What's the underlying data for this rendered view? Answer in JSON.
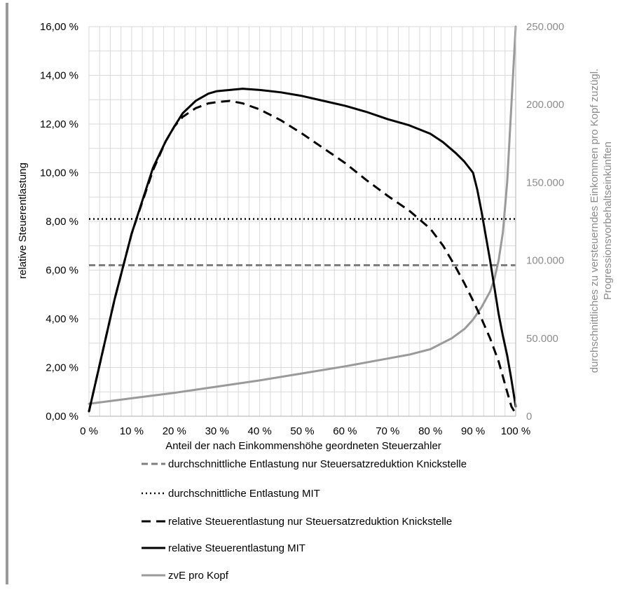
{
  "chart_data": {
    "type": "line",
    "xlabel": "Anteil der nach Einkommenshöhe geordneten Steuerzahler",
    "ylabel": "relative Steuerentlastung",
    "y2label_line1": "durchschnittliches zu versteuerndes Einkommen pro Kopf zuzügl.",
    "y2label_line2": "Progressionsvorbehaltseinkünften",
    "xlim": [
      0,
      100
    ],
    "ylim": [
      0,
      16
    ],
    "y2lim": [
      0,
      250000
    ],
    "x_ticks": [
      "0 %",
      "10 %",
      "20 %",
      "30 %",
      "40 %",
      "50 %",
      "60 %",
      "70 %",
      "80 %",
      "90 %",
      "100 %"
    ],
    "y_ticks": [
      "0,00 %",
      "2,00 %",
      "4,00 %",
      "6,00 %",
      "8,00 %",
      "10,00 %",
      "12,00 %",
      "14,00 %",
      "16,00 %"
    ],
    "y2_ticks": [
      "0",
      "50.000",
      "100.000",
      "150.000",
      "200.000",
      "250.000"
    ],
    "grid": true,
    "legend_position": "bottom",
    "series": [
      {
        "name": "durchschnittliche Entlastung nur Steuersatzreduktion Knickstelle",
        "axis": "left",
        "color": "#7f7f7f",
        "style": "dashed",
        "x": [
          0,
          100
        ],
        "y": [
          6.2,
          6.2
        ]
      },
      {
        "name": "durchschnittliche Entlastung MIT",
        "axis": "left",
        "color": "#000000",
        "style": "dotted",
        "x": [
          0,
          100
        ],
        "y": [
          8.1,
          8.1
        ]
      },
      {
        "name": "relative Steuerentlastung nur Steuersatzreduktion Knickstelle",
        "axis": "left",
        "color": "#000000",
        "style": "longdash",
        "x": [
          0,
          3,
          6,
          10,
          15,
          18,
          20,
          22,
          25,
          28,
          30,
          33,
          36,
          40,
          45,
          50,
          55,
          60,
          65,
          70,
          75,
          80,
          83,
          86,
          88,
          90,
          92,
          94,
          96,
          98,
          99,
          100
        ],
        "y": [
          0.2,
          2.5,
          4.8,
          7.5,
          10.1,
          11.3,
          11.9,
          12.3,
          12.65,
          12.85,
          12.9,
          12.95,
          12.85,
          12.6,
          12.15,
          11.6,
          11.0,
          10.4,
          9.7,
          9.05,
          8.45,
          7.7,
          7.0,
          6.1,
          5.45,
          4.75,
          4.0,
          3.2,
          2.25,
          1.0,
          0.4,
          0.1
        ]
      },
      {
        "name": "relative Steuerentlastung MIT",
        "axis": "left",
        "color": "#000000",
        "style": "solid",
        "x": [
          0,
          3,
          6,
          10,
          15,
          18,
          20,
          22,
          25,
          28,
          30,
          33,
          36,
          40,
          45,
          50,
          55,
          60,
          65,
          70,
          75,
          80,
          83,
          86,
          88,
          90,
          91,
          92,
          93,
          94,
          95,
          96,
          97,
          98,
          99,
          100
        ],
        "y": [
          0.2,
          2.5,
          4.8,
          7.5,
          10.2,
          11.3,
          11.9,
          12.45,
          12.95,
          13.25,
          13.35,
          13.4,
          13.45,
          13.4,
          13.3,
          13.15,
          12.95,
          12.75,
          12.5,
          12.2,
          11.95,
          11.6,
          11.25,
          10.8,
          10.45,
          10.0,
          9.3,
          8.4,
          7.4,
          6.4,
          5.3,
          4.2,
          3.3,
          2.5,
          1.5,
          0.4
        ]
      },
      {
        "name": "zvE pro Kopf",
        "axis": "right",
        "color": "#9a9a9a",
        "style": "solid",
        "x": [
          0,
          10,
          20,
          30,
          40,
          50,
          60,
          70,
          75,
          80,
          85,
          88,
          90,
          92,
          94,
          95,
          96,
          97,
          98,
          99,
          100
        ],
        "y": [
          8000,
          11500,
          15000,
          19000,
          23000,
          27500,
          32000,
          37000,
          39500,
          43000,
          50000,
          56000,
          62000,
          70000,
          80000,
          88000,
          100000,
          118000,
          150000,
          200000,
          250000
        ]
      }
    ]
  }
}
